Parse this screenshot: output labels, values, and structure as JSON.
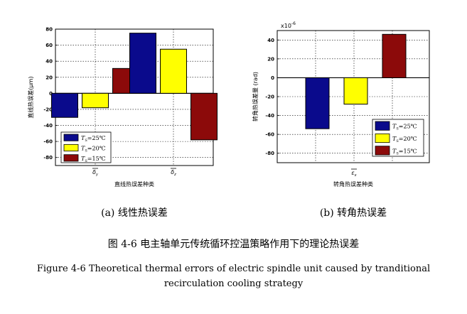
{
  "chart_data": [
    {
      "type": "bar",
      "categories": [
        "δ̄y",
        "δ̄z"
      ],
      "category_labels": [
        {
          "main": "δ",
          "sub": "y"
        },
        {
          "main": "δ",
          "sub": "z"
        }
      ],
      "series": [
        {
          "name": "Ts=25℃",
          "color": "#0a0a8c",
          "values": [
            -30,
            75
          ]
        },
        {
          "name": "Ts=20℃",
          "color": "#ffff00",
          "values": [
            -18,
            55
          ]
        },
        {
          "name": "Ts=15℃",
          "color": "#8c0a0a",
          "values": [
            31,
            -58
          ]
        }
      ],
      "ylim": [
        -90,
        80
      ],
      "yticks": [
        80,
        60,
        40,
        20,
        0,
        -20,
        -40,
        -60,
        -80
      ],
      "ylabel": "直线热误差(μm)",
      "xlabel": "直线热误差种类",
      "legend": {
        "position": "bottom-left",
        "entries": [
          {
            "prefix": "T",
            "sub": "S",
            "rest": "=25℃"
          },
          {
            "prefix": "T",
            "sub": "S",
            "rest": "=20℃"
          },
          {
            "prefix": "T",
            "sub": "S",
            "rest": "=15℃"
          }
        ]
      },
      "grid": true,
      "subtitle": "(a) 线性热误差"
    },
    {
      "type": "bar",
      "categories": [
        "ε̄x"
      ],
      "category_labels": [
        {
          "main": "ε",
          "sub": "x"
        }
      ],
      "series": [
        {
          "name": "Ts=25℃",
          "color": "#0a0a8c",
          "values": [
            -54
          ]
        },
        {
          "name": "Ts=20℃",
          "color": "#ffff00",
          "values": [
            -28
          ]
        },
        {
          "name": "Ts=15℃",
          "color": "#8c0a0a",
          "values": [
            46
          ]
        }
      ],
      "ylim": [
        -90,
        50
      ],
      "yticks": [
        40,
        20,
        0,
        -20,
        -40,
        -60,
        -80
      ],
      "scale_note": "x10",
      "scale_exp": "-6",
      "ylabel": "转角热误差量 (rad)",
      "xlabel": "转角热误差种类",
      "legend": {
        "position": "bottom-right",
        "entries": [
          {
            "prefix": "T",
            "sub": "S",
            "rest": "=25℃"
          },
          {
            "prefix": "T",
            "sub": "S",
            "rest": "=20℃"
          },
          {
            "prefix": "T",
            "sub": "S",
            "rest": "=15℃"
          }
        ]
      },
      "grid": true,
      "subtitle": "(b) 转角热误差"
    }
  ],
  "caption": {
    "chinese": "图 4-6  电主轴单元传统循环控温策略作用下的理论热误差",
    "english_line1": "Figure 4-6 Theoretical thermal errors of electric spindle unit caused by tranditional",
    "english_line2": "recirculation cooling strategy"
  }
}
